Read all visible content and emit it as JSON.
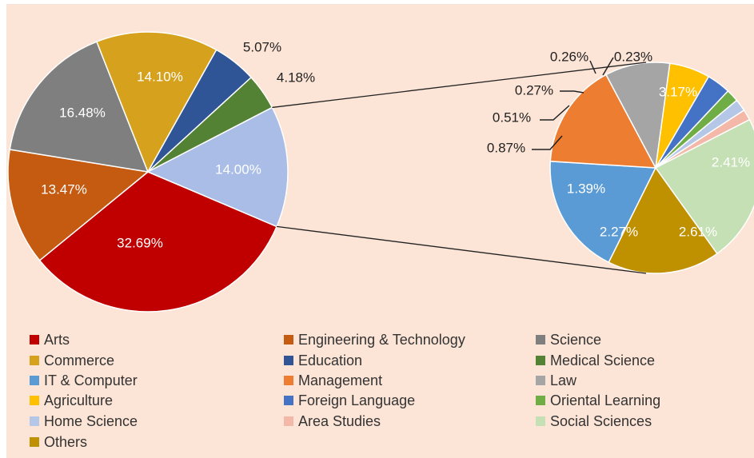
{
  "chart_data": {
    "type": "pie-of-pie",
    "pies": [
      {
        "categories": [
          "Arts",
          "Engineering & Technology",
          "Science",
          "Commerce",
          "Education",
          "Medical Science",
          null
        ],
        "values": [
          32.69,
          13.47,
          16.48,
          14.1,
          5.07,
          4.18,
          14.0
        ],
        "value_labels": [
          "32.69%",
          "13.47%",
          "16.48%",
          "14.10%",
          "5.07%",
          "4.18%",
          "14.00%"
        ],
        "colors": [
          "#c00000",
          "#c55a11",
          "#7f7f7f",
          "#d6a21e",
          "#2f5597",
          "#548235",
          "#a9bde6"
        ]
      },
      {
        "categories": [
          "IT & Computer",
          "Management",
          "Law",
          "Agriculture",
          "Foreign Language",
          "Oriental Learning",
          "Home Science",
          "Area Studies",
          "Social Sciences",
          "Others"
        ],
        "values": [
          2.61,
          2.27,
          1.39,
          0.87,
          0.51,
          0.27,
          0.26,
          0.23,
          3.17,
          2.41
        ],
        "value_labels": [
          "2.61%",
          "2.27%",
          "1.39%",
          "0.87%",
          "0.51%",
          "0.27%",
          "0.26%",
          "0.23%",
          "3.17%",
          "2.41%"
        ],
        "colors": [
          "#5b9bd5",
          "#ed7d31",
          "#a5a5a5",
          "#ffc000",
          "#4472c4",
          "#70ad47",
          "#b4c7e7",
          "#f4b8a8",
          "#c5e0b4",
          "#bf9000"
        ]
      }
    ]
  }
}
